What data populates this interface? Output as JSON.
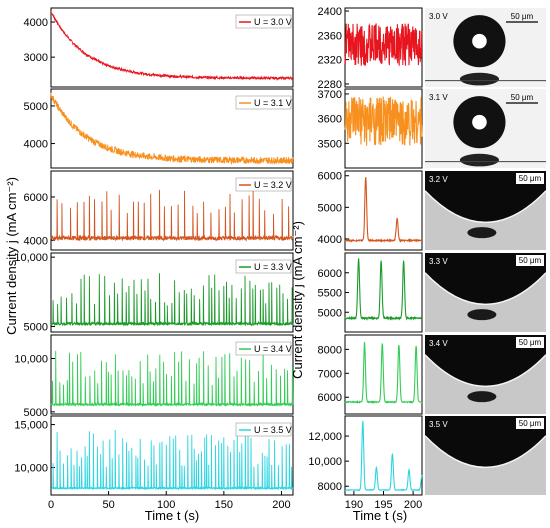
{
  "figure": {
    "ylabel": "Current density j (mA cm⁻²)",
    "xlabel_left": "Time t (s)",
    "xlabel_right": "Time t (s)"
  },
  "chart_data": [
    {
      "type": "line",
      "panel": "left",
      "legend": "U = 3.0 V",
      "color": "#e8141e",
      "xlim": [
        0,
        210
      ],
      "ylim": [
        2150,
        4400
      ],
      "yticks": [
        3000,
        4000
      ],
      "ytick_labels": [
        "3000",
        "4000"
      ],
      "behavior": "decay",
      "start": 4300,
      "end": 2400,
      "noise": 35
    },
    {
      "type": "line",
      "panel": "left",
      "legend": "U = 3.1 V",
      "color": "#f7901e",
      "xlim": [
        0,
        210
      ],
      "ylim": [
        3350,
        5450
      ],
      "yticks": [
        4000,
        5000
      ],
      "ytick_labels": [
        "4000",
        "5000"
      ],
      "behavior": "decay",
      "start": 5300,
      "end": 3550,
      "noise": 90
    },
    {
      "type": "line",
      "panel": "left",
      "legend": "U = 3.2 V",
      "color": "#d4541e",
      "xlim": [
        0,
        210
      ],
      "ylim": [
        3550,
        7200
      ],
      "yticks": [
        4000,
        6000
      ],
      "ytick_labels": [
        "4000",
        "6000"
      ],
      "behavior": "spikes",
      "base": 4000,
      "spike_min": 5200,
      "spike_max": 6400,
      "period": 5.5
    },
    {
      "type": "line",
      "panel": "left",
      "legend": "U = 3.3 V",
      "color": "#1b9a2a",
      "xlim": [
        0,
        210
      ],
      "ylim": [
        4600,
        10300
      ],
      "yticks": [
        5000,
        10000
      ],
      "ytick_labels": [
        "5000",
        "10,000"
      ],
      "behavior": "spikes",
      "base": 5100,
      "spike_min": 6500,
      "spike_max": 9000,
      "period": 3.4
    },
    {
      "type": "line",
      "panel": "left",
      "legend": "U = 3.4 V",
      "color": "#33cc55",
      "xlim": [
        0,
        210
      ],
      "ylim": [
        4800,
        12200
      ],
      "yticks": [
        5000,
        10000
      ],
      "ytick_labels": [
        "5000",
        "10,000"
      ],
      "behavior": "spikes",
      "base": 5600,
      "spike_min": 7500,
      "spike_max": 11000,
      "period": 3.0
    },
    {
      "type": "line",
      "panel": "left",
      "legend": "U = 3.5 V",
      "color": "#2dd5e0",
      "xlim": [
        0,
        210
      ],
      "ylim": [
        6800,
        16000
      ],
      "yticks": [
        10000,
        15000
      ],
      "ytick_labels": [
        "10,000",
        "15,000"
      ],
      "behavior": "spikes",
      "base": 7500,
      "spike_min": 10000,
      "spike_max": 14500,
      "period": 2.6
    },
    {
      "type": "line",
      "panel": "right",
      "color": "#e8141e",
      "ylim": [
        2275,
        2405
      ],
      "yticks": [
        2280,
        2320,
        2360,
        2400
      ],
      "ytick_labels": [
        "2280",
        "2320",
        "2360",
        "2400"
      ],
      "behavior": "noise",
      "mean": 2345,
      "amp": 35
    },
    {
      "type": "line",
      "panel": "right",
      "color": "#f7901e",
      "ylim": [
        3400,
        3720
      ],
      "yticks": [
        3500,
        3600,
        3700
      ],
      "ytick_labels": [
        "3500",
        "3600",
        "3700"
      ],
      "behavior": "noise",
      "mean": 3590,
      "amp": 100
    },
    {
      "type": "line",
      "panel": "right",
      "color": "#d4541e",
      "ylim": [
        3650,
        6150
      ],
      "yticks": [
        4000,
        5000,
        6000
      ],
      "ytick_labels": [
        "4000",
        "5000",
        "6000"
      ],
      "behavior": "peaks",
      "base": 3950,
      "peaks": [
        [
          192.0,
          5950
        ],
        [
          197.3,
          4650
        ]
      ]
    },
    {
      "type": "line",
      "panel": "right",
      "color": "#1b9a2a",
      "ylim": [
        4500,
        6500
      ],
      "yticks": [
        5000,
        5500,
        6000
      ],
      "ytick_labels": [
        "5000",
        "5500",
        "6000"
      ],
      "behavior": "peaks",
      "base": 4850,
      "peaks": [
        [
          190.8,
          6350
        ],
        [
          194.6,
          6300
        ],
        [
          198.4,
          6300
        ]
      ]
    },
    {
      "type": "line",
      "panel": "right",
      "color": "#33cc55",
      "ylim": [
        5300,
        8600
      ],
      "yticks": [
        6000,
        7000,
        8000
      ],
      "ytick_labels": [
        "6000",
        "7000",
        "8000"
      ],
      "behavior": "peaks",
      "base": 5800,
      "peaks": [
        [
          191.8,
          8300
        ],
        [
          194.8,
          8250
        ],
        [
          197.6,
          8200
        ],
        [
          200.5,
          8150
        ]
      ]
    },
    {
      "type": "line",
      "panel": "right",
      "color": "#2dd5e0",
      "ylim": [
        7300,
        13600
      ],
      "yticks": [
        8000,
        10000,
        12000
      ],
      "ytick_labels": [
        "8000",
        "10,000",
        "12,000"
      ],
      "behavior": "peaks",
      "base": 7700,
      "peaks": [
        [
          191.5,
          13200
        ],
        [
          193.8,
          9500
        ],
        [
          196.5,
          10600
        ],
        [
          199.3,
          9300
        ],
        [
          201.5,
          8900
        ]
      ]
    }
  ],
  "right_xaxis": {
    "xlim": [
      188.5,
      201.5
    ],
    "ticks": [
      190,
      195,
      200
    ],
    "tick_labels": [
      "190",
      "195",
      "200"
    ]
  },
  "left_xaxis": {
    "ticks": [
      0,
      50,
      100,
      150,
      200
    ],
    "tick_labels": [
      "0",
      "50",
      "100",
      "150",
      "200"
    ]
  },
  "images": [
    {
      "label": "3.0 V",
      "scale": "50 μm",
      "kind": "drop"
    },
    {
      "label": "3.1 V",
      "scale": "50 μm",
      "kind": "drop"
    },
    {
      "label": "3.2 V",
      "scale": "50 μm",
      "kind": "well"
    },
    {
      "label": "3.3 V",
      "scale": "50 μm",
      "kind": "well"
    },
    {
      "label": "3.4 V",
      "scale": "50 μm",
      "kind": "well"
    },
    {
      "label": "3.5 V",
      "scale": "50 μm",
      "kind": "well"
    }
  ]
}
